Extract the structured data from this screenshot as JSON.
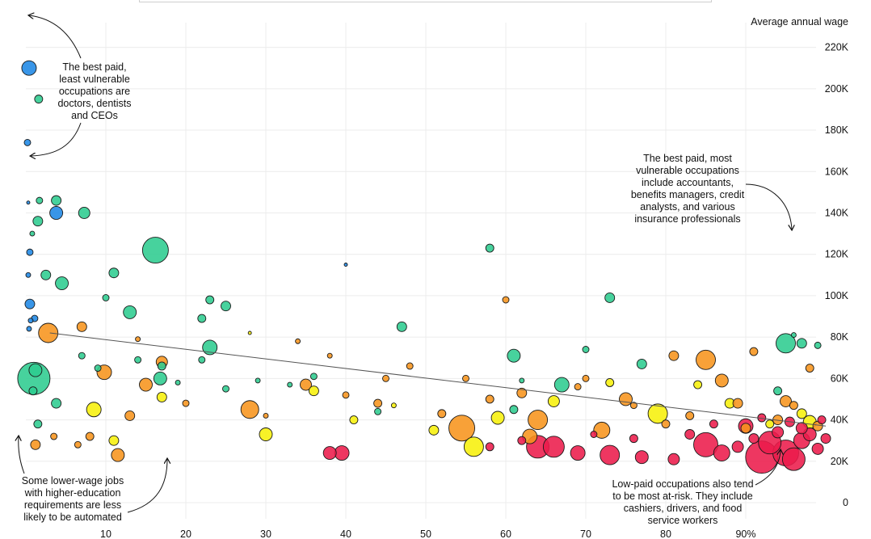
{
  "chart_data": {
    "type": "scatter",
    "title": "",
    "ylabel": "Average annual wage",
    "xlabel": "",
    "xlim": [
      0,
      100
    ],
    "ylim": [
      0,
      230000
    ],
    "x_ticks": [
      {
        "value": 10,
        "label": "10"
      },
      {
        "value": 20,
        "label": "20"
      },
      {
        "value": 30,
        "label": "30"
      },
      {
        "value": 40,
        "label": "40"
      },
      {
        "value": 50,
        "label": "50"
      },
      {
        "value": 60,
        "label": "60"
      },
      {
        "value": 70,
        "label": "70"
      },
      {
        "value": 80,
        "label": "80"
      },
      {
        "value": 90,
        "label": "90%"
      }
    ],
    "y_ticks": [
      {
        "value": 0,
        "label": "0"
      },
      {
        "value": 20000,
        "label": "20K"
      },
      {
        "value": 40000,
        "label": "40K"
      },
      {
        "value": 60000,
        "label": "60K"
      },
      {
        "value": 80000,
        "label": "80K"
      },
      {
        "value": 100000,
        "label": "100K"
      },
      {
        "value": 120000,
        "label": "120K"
      },
      {
        "value": 140000,
        "label": "140K"
      },
      {
        "value": 160000,
        "label": "160K"
      },
      {
        "value": 180000,
        "label": "180K"
      },
      {
        "value": 200000,
        "label": "200K"
      },
      {
        "value": 220000,
        "label": "220K"
      }
    ],
    "trend_line": {
      "x": [
        3,
        100
      ],
      "y": [
        82000,
        37000
      ]
    },
    "colors": {
      "blue": "#1e88e5",
      "green": "#2ecc8f",
      "yellow": "#f7f00a",
      "orange": "#f7941d",
      "red": "#ec1b4b",
      "gridline": "#ececec",
      "trend": "#555555"
    },
    "series": [
      {
        "name": "blue",
        "points": [
          [
            0.4,
            210000,
            9
          ],
          [
            0.2,
            174000,
            4
          ],
          [
            0.3,
            145000,
            2
          ],
          [
            3.8,
            140000,
            8
          ],
          [
            0.5,
            121000,
            4
          ],
          [
            0.3,
            110000,
            3
          ],
          [
            0.5,
            96000,
            6
          ],
          [
            0.6,
            88000,
            3
          ],
          [
            1.1,
            89000,
            4
          ],
          [
            0.4,
            84000,
            3
          ],
          [
            40,
            115000,
            2
          ]
        ]
      },
      {
        "name": "green",
        "points": [
          [
            1.6,
            195000,
            5
          ],
          [
            1.7,
            146000,
            4
          ],
          [
            3.8,
            146000,
            6
          ],
          [
            7.3,
            140000,
            7
          ],
          [
            1.5,
            136000,
            6
          ],
          [
            0.8,
            130000,
            3
          ],
          [
            16.2,
            122000,
            16
          ],
          [
            11,
            111000,
            6
          ],
          [
            2.5,
            110000,
            6
          ],
          [
            4.5,
            106000,
            8
          ],
          [
            13,
            92000,
            8
          ],
          [
            23,
            98000,
            5
          ],
          [
            25,
            95000,
            6
          ],
          [
            22,
            89000,
            5
          ],
          [
            23,
            75000,
            9
          ],
          [
            17,
            66000,
            5
          ],
          [
            16.8,
            60000,
            8
          ],
          [
            1,
            60000,
            20
          ],
          [
            1.2,
            64000,
            8
          ],
          [
            0.9,
            54000,
            5
          ],
          [
            3.8,
            48000,
            6
          ],
          [
            1.5,
            38000,
            5
          ],
          [
            7,
            71000,
            4
          ],
          [
            9,
            65000,
            4
          ],
          [
            25,
            55000,
            4
          ],
          [
            44,
            44000,
            4
          ],
          [
            47,
            85000,
            6
          ],
          [
            58,
            123000,
            5
          ],
          [
            61,
            71000,
            8
          ],
          [
            67,
            57000,
            9
          ],
          [
            73,
            99000,
            6
          ],
          [
            77,
            67000,
            6
          ],
          [
            95,
            77000,
            12
          ],
          [
            97,
            77000,
            6
          ],
          [
            99,
            76000,
            4
          ],
          [
            96,
            81000,
            3
          ],
          [
            94,
            54000,
            5
          ],
          [
            33,
            57000,
            3
          ],
          [
            29,
            59000,
            3
          ],
          [
            61,
            45000,
            5
          ],
          [
            36,
            61000,
            4
          ],
          [
            22,
            69000,
            4
          ],
          [
            70,
            74000,
            4
          ],
          [
            19,
            58000,
            3
          ],
          [
            10,
            99000,
            4
          ],
          [
            14,
            69000,
            4
          ],
          [
            62,
            59000,
            3
          ]
        ]
      },
      {
        "name": "yellow",
        "points": [
          [
            8.5,
            45000,
            9
          ],
          [
            11,
            30000,
            6
          ],
          [
            17,
            51000,
            6
          ],
          [
            30,
            33000,
            8
          ],
          [
            36,
            54000,
            6
          ],
          [
            41,
            40000,
            5
          ],
          [
            51,
            35000,
            6
          ],
          [
            56,
            27000,
            12
          ],
          [
            59,
            41000,
            8
          ],
          [
            66,
            49000,
            7
          ],
          [
            73,
            58000,
            5
          ],
          [
            79,
            43000,
            12
          ],
          [
            84,
            57000,
            5
          ],
          [
            88,
            48000,
            6
          ],
          [
            93,
            38000,
            5
          ],
          [
            98,
            39000,
            8
          ],
          [
            97,
            43000,
            6
          ],
          [
            28,
            82000,
            2
          ],
          [
            46,
            47000,
            3
          ]
        ]
      },
      {
        "name": "orange",
        "points": [
          [
            2.8,
            82000,
            12
          ],
          [
            7,
            85000,
            6
          ],
          [
            9.8,
            63000,
            9
          ],
          [
            13,
            42000,
            6
          ],
          [
            15,
            57000,
            8
          ],
          [
            17,
            68000,
            7
          ],
          [
            8,
            32000,
            5
          ],
          [
            11.5,
            23000,
            8
          ],
          [
            28,
            45000,
            11
          ],
          [
            35,
            57000,
            7
          ],
          [
            40,
            52000,
            4
          ],
          [
            44,
            48000,
            5
          ],
          [
            54.5,
            36000,
            16
          ],
          [
            58,
            50000,
            5
          ],
          [
            63,
            32000,
            9
          ],
          [
            64,
            40000,
            12
          ],
          [
            72,
            35000,
            10
          ],
          [
            75,
            50000,
            8
          ],
          [
            81,
            71000,
            6
          ],
          [
            85,
            69000,
            12
          ],
          [
            87,
            59000,
            8
          ],
          [
            89,
            48000,
            6
          ],
          [
            91,
            73000,
            5
          ],
          [
            95,
            49000,
            7
          ],
          [
            98,
            65000,
            5
          ],
          [
            1.2,
            28000,
            6
          ],
          [
            3.5,
            32000,
            4
          ],
          [
            6.5,
            28000,
            4
          ],
          [
            20,
            48000,
            4
          ],
          [
            45,
            60000,
            4
          ],
          [
            52,
            43000,
            5
          ],
          [
            55,
            60000,
            4
          ],
          [
            62,
            53000,
            6
          ],
          [
            69,
            56000,
            4
          ],
          [
            76,
            47000,
            4
          ],
          [
            80,
            38000,
            5
          ],
          [
            83,
            42000,
            5
          ],
          [
            90,
            36000,
            6
          ],
          [
            94,
            40000,
            6
          ],
          [
            96,
            47000,
            5
          ],
          [
            99,
            37000,
            6
          ],
          [
            60,
            98000,
            4
          ],
          [
            70,
            60000,
            4
          ],
          [
            48,
            66000,
            4
          ],
          [
            14,
            79000,
            3
          ],
          [
            34,
            78000,
            3
          ],
          [
            38,
            71000,
            3
          ],
          [
            30,
            42000,
            3
          ]
        ]
      },
      {
        "name": "red",
        "points": [
          [
            38,
            24000,
            8
          ],
          [
            39.5,
            24000,
            9
          ],
          [
            64,
            27000,
            14
          ],
          [
            66,
            27000,
            13
          ],
          [
            69,
            24000,
            9
          ],
          [
            73,
            23000,
            12
          ],
          [
            77,
            22000,
            8
          ],
          [
            81,
            21000,
            7
          ],
          [
            85,
            28000,
            15
          ],
          [
            87,
            24000,
            10
          ],
          [
            92,
            22000,
            20
          ],
          [
            93,
            29000,
            14
          ],
          [
            95,
            24000,
            16
          ],
          [
            96,
            21000,
            14
          ],
          [
            97,
            30000,
            10
          ],
          [
            99,
            26000,
            7
          ],
          [
            90,
            37000,
            9
          ],
          [
            91,
            31000,
            6
          ],
          [
            94,
            34000,
            7
          ],
          [
            98,
            33000,
            8
          ],
          [
            83,
            33000,
            6
          ],
          [
            86,
            38000,
            5
          ],
          [
            76,
            31000,
            5
          ],
          [
            62,
            30000,
            5
          ],
          [
            58,
            27000,
            5
          ],
          [
            71,
            33000,
            4
          ],
          [
            89,
            27000,
            7
          ],
          [
            100,
            31000,
            6
          ],
          [
            92,
            41000,
            5
          ],
          [
            97,
            36000,
            7
          ],
          [
            99.5,
            40000,
            5
          ],
          [
            95.5,
            39000,
            6
          ]
        ]
      }
    ]
  },
  "annotations": {
    "top_left": "The best paid, least vulnerable occupations are doctors, dentists and CEOs",
    "top_right": "The best paid, most vulnerable occupations include accountants, benefits managers, credit analysts, and various insurance professionals",
    "bottom_left": "Some lower-wage jobs with higher-education requirements are less likely to be automated",
    "bottom_right": "Low-paid occupations also tend to be most at-risk. They include cashiers, drivers, and food service workers"
  }
}
